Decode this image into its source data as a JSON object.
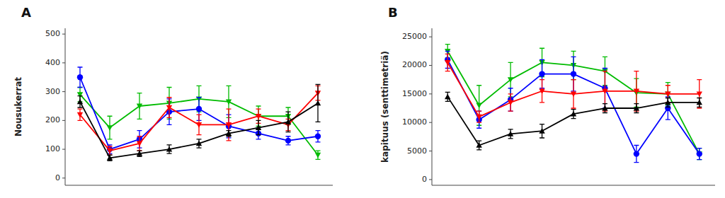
{
  "chart_data": [
    {
      "type": "line",
      "title": "A",
      "y_label": "Nousukerrat",
      "categories": [
        null,
        null,
        null,
        null,
        null,
        null,
        null,
        null,
        null
      ],
      "ylim": [
        -25,
        520
      ],
      "yticks": [
        0,
        100,
        200,
        300,
        400,
        500
      ],
      "grid": false,
      "tick_labels": "y",
      "series": [
        {
          "color": "#00bb00",
          "marker": "triangle-down",
          "values": [
            290,
            175,
            250,
            260,
            275,
            265,
            215,
            215,
            80
          ],
          "errors": [
            25,
            40,
            45,
            55,
            45,
            55,
            35,
            30,
            15
          ]
        },
        {
          "color": "#0000ff",
          "marker": "circle",
          "values": [
            350,
            100,
            135,
            230,
            240,
            180,
            155,
            130,
            145
          ],
          "errors": [
            35,
            15,
            30,
            45,
            40,
            40,
            20,
            15,
            20
          ]
        },
        {
          "color": "#ff0000",
          "marker": "triangle-down",
          "values": [
            220,
            95,
            120,
            245,
            185,
            185,
            215,
            185,
            295
          ],
          "errors": [
            20,
            15,
            25,
            35,
            35,
            55,
            25,
            20,
            25
          ]
        },
        {
          "color": "#000000",
          "marker": "triangle-up",
          "values": [
            265,
            70,
            85,
            100,
            120,
            155,
            175,
            195,
            260
          ],
          "errors": [
            20,
            10,
            10,
            15,
            15,
            10,
            25,
            35,
            65
          ]
        }
      ]
    },
    {
      "type": "line",
      "title": "B",
      "y_label": "kapituus (senttimetriä)",
      "categories": [
        null,
        null,
        null,
        null,
        null,
        null,
        null,
        null,
        null
      ],
      "ylim": [
        -1000,
        26500
      ],
      "yticks": [
        0,
        5000,
        10000,
        15000,
        20000,
        25000
      ],
      "grid": false,
      "tick_labels": "y",
      "series": [
        {
          "color": "#00bb00",
          "marker": "triangle-down",
          "values": [
            22500,
            13000,
            17500,
            20500,
            20000,
            19000,
            15200,
            15000,
            4500
          ],
          "errors": [
            1200,
            3500,
            3000,
            2500,
            2500,
            2500,
            2500,
            2000,
            1000
          ]
        },
        {
          "color": "#0000ff",
          "marker": "circle",
          "values": [
            21000,
            10500,
            14000,
            18500,
            18500,
            16000,
            4500,
            12500,
            4500
          ],
          "errors": [
            1500,
            1500,
            2000,
            2500,
            3000,
            3500,
            1500,
            2000,
            1000
          ]
        },
        {
          "color": "#ff0000",
          "marker": "triangle-down",
          "values": [
            20500,
            11000,
            13500,
            15500,
            15000,
            15500,
            15500,
            15000,
            15000
          ],
          "errors": [
            1500,
            1000,
            1500,
            2000,
            2500,
            3500,
            3500,
            1500,
            2500
          ]
        },
        {
          "color": "#000000",
          "marker": "triangle-up",
          "values": [
            14500,
            6000,
            8000,
            8500,
            11500,
            12500,
            12500,
            13500,
            13500
          ],
          "errors": [
            800,
            800,
            800,
            1200,
            800,
            800,
            800,
            800,
            800
          ]
        }
      ]
    }
  ]
}
